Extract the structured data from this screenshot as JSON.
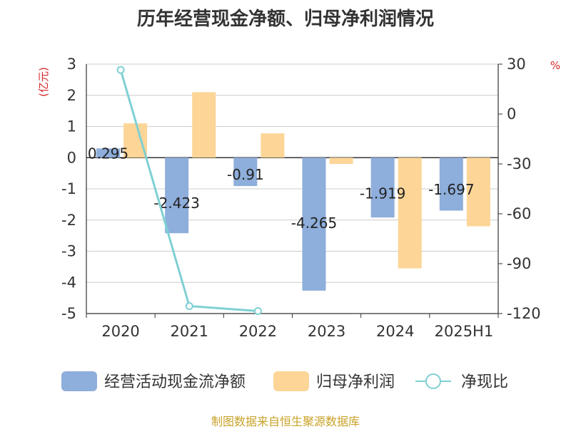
{
  "title": "历年经营现金净额、归母净利润情况",
  "source": "制图数据来自恒生聚源数据库",
  "chart_data": {
    "type": "bar",
    "categories": [
      "2020",
      "2021",
      "2022",
      "2023",
      "2024",
      "2025H1"
    ],
    "series": [
      {
        "name": "经营活动现金流净额",
        "kind": "bar",
        "axis": "left",
        "color": "#8eaedb",
        "values": [
          0.295,
          -2.423,
          -0.91,
          -4.265,
          -1.919,
          -1.697
        ],
        "labels": [
          "0.295",
          "-2.423",
          "-0.91",
          "-4.265",
          "-1.919",
          "-1.697"
        ]
      },
      {
        "name": "归母净利润",
        "kind": "bar",
        "axis": "left",
        "color": "#fcd597",
        "values": [
          1.1,
          2.1,
          0.78,
          -0.2,
          -3.55,
          -2.2
        ]
      },
      {
        "name": "净现比",
        "kind": "line",
        "axis": "right",
        "color": "#7fd0d3",
        "values": [
          26.5,
          -115.5,
          -118.5,
          null,
          null,
          null
        ]
      }
    ],
    "y_left": {
      "label": "(亿元)",
      "lim": [
        -5,
        3
      ],
      "ticks": [
        -5,
        -4,
        -3,
        -2,
        -1,
        0,
        1,
        2,
        3
      ]
    },
    "y_right": {
      "label": "%",
      "lim": [
        -120,
        30
      ],
      "ticks": [
        -120,
        -90,
        -60,
        -30,
        0,
        30
      ]
    },
    "grid": true,
    "legend_position": "bottom"
  }
}
